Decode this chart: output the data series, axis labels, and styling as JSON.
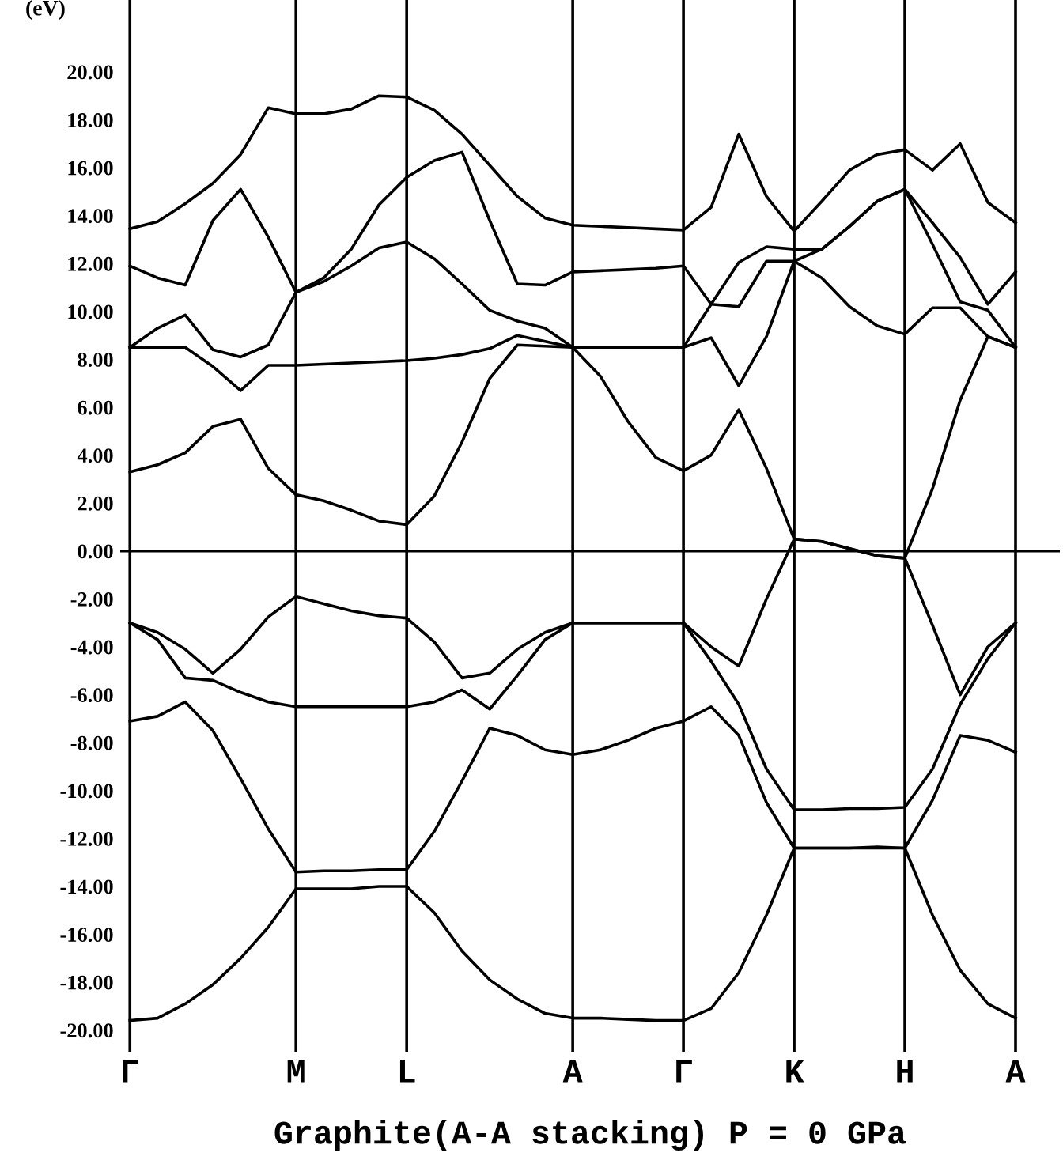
{
  "chart_data": {
    "type": "line",
    "xlabel": "Graphite(A-A stacking) P = 0 GPa",
    "ylabel": "(eV)",
    "categories": [
      "Γ",
      null,
      null,
      null,
      null,
      null,
      "M",
      null,
      null,
      null,
      "L",
      null,
      null,
      null,
      null,
      null,
      "A",
      null,
      null,
      null,
      "Γ",
      null,
      null,
      null,
      "K",
      null,
      null,
      null,
      "H",
      null,
      null,
      null,
      "A"
    ],
    "ylim": [
      -20.9,
      23.0
    ],
    "yticks": [
      {
        "value": 20,
        "label": "20.00"
      },
      {
        "value": 18,
        "label": "18.00"
      },
      {
        "value": 16,
        "label": "16.00"
      },
      {
        "value": 14,
        "label": "14.00"
      },
      {
        "value": 12,
        "label": "12.00"
      },
      {
        "value": 10,
        "label": "10.00"
      },
      {
        "value": 8,
        "label": "8.00"
      },
      {
        "value": 6,
        "label": "6.00"
      },
      {
        "value": 4,
        "label": "4.00"
      },
      {
        "value": 2,
        "label": "2.00"
      },
      {
        "value": 0,
        "label": "0.00"
      },
      {
        "value": -2,
        "label": "-2.00"
      },
      {
        "value": -4,
        "label": "-4.00"
      },
      {
        "value": -6,
        "label": "-6.00"
      },
      {
        "value": -8,
        "label": "-8.00"
      },
      {
        "value": -10,
        "label": "-10.00"
      },
      {
        "value": -12,
        "label": "-12.00"
      },
      {
        "value": -14,
        "label": "-14.00"
      },
      {
        "value": -16,
        "label": "-16.00"
      },
      {
        "value": -18,
        "label": "-18.00"
      },
      {
        "value": -20,
        "label": "-20.00"
      }
    ],
    "grid": "x",
    "marker": "none",
    "line_style": "solid",
    "ref_lines": [
      {
        "axis": "y",
        "value": 0,
        "color": "#000000"
      }
    ],
    "series": [
      {
        "color": "#000000",
        "values": [
          -19.6,
          -19.5,
          -18.9,
          -18.1,
          -17.0,
          -15.7,
          -14.1,
          -14.1,
          -14.1,
          -14.0,
          -14.0,
          -15.1,
          -16.7,
          -17.9,
          -18.7,
          -19.3,
          -19.5,
          -19.5,
          -19.55,
          -19.6,
          -19.6,
          -19.1,
          -17.6,
          -15.2,
          -12.4,
          -12.4,
          -12.4,
          -12.35,
          -12.4,
          -15.2,
          -17.5,
          -18.9,
          -19.5
        ]
      },
      {
        "color": "#000000",
        "values": [
          -7.1,
          -6.9,
          -6.3,
          -7.5,
          -9.5,
          -11.6,
          -13.4,
          -13.35,
          -13.35,
          -13.3,
          -13.3,
          -11.7,
          -9.6,
          -7.4,
          -7.7,
          -8.3,
          -8.5,
          -8.3,
          -7.9,
          -7.4,
          -7.1,
          -6.5,
          -7.7,
          -10.5,
          -12.4,
          -12.4,
          -12.4,
          -12.4,
          -12.4,
          -10.4,
          -7.7,
          -7.9,
          -8.4
        ]
      },
      {
        "color": "#000000",
        "values": [
          -3.0,
          -3.4,
          -4.1,
          -5.1,
          -4.1,
          -2.75,
          -1.9,
          -2.2,
          -2.5,
          -2.7,
          -2.8,
          -3.8,
          -5.3,
          -5.1,
          -4.1,
          -3.4,
          -3.0,
          -3.0,
          -3.0,
          -3.0,
          -3.0,
          -4.0,
          -4.8,
          -2.0,
          0.5,
          0.4,
          0.1,
          -0.2,
          -0.3,
          -3.1,
          -6.0,
          -4.0,
          -3.0
        ]
      },
      {
        "color": "#000000",
        "values": [
          -3.0,
          -3.7,
          -5.3,
          -5.4,
          -5.9,
          -6.3,
          -6.5,
          -6.5,
          -6.5,
          -6.5,
          -6.5,
          -6.3,
          -5.8,
          -6.6,
          -5.2,
          -3.7,
          -3.0,
          -3.0,
          -3.0,
          -3.0,
          -3.0,
          -4.6,
          -6.4,
          -9.1,
          -10.8,
          -10.8,
          -10.75,
          -10.75,
          -10.7,
          -9.1,
          -6.4,
          -4.5,
          -3.0
        ]
      },
      {
        "color": "#000000",
        "values": [
          3.3,
          3.6,
          4.1,
          5.2,
          5.5,
          3.45,
          2.35,
          2.1,
          1.7,
          1.25,
          1.1,
          2.3,
          4.55,
          7.2,
          8.6,
          8.55,
          8.5,
          7.3,
          5.4,
          3.9,
          3.35,
          4.0,
          5.9,
          3.45,
          0.5,
          0.4,
          0.1,
          -0.2,
          -0.3,
          2.6,
          6.3,
          8.95,
          8.5
        ]
      },
      {
        "color": "#000000",
        "values": [
          8.5,
          8.5,
          8.5,
          7.7,
          6.7,
          7.75,
          7.75,
          7.8,
          7.85,
          7.9,
          7.95,
          8.05,
          8.2,
          8.45,
          9.0,
          8.75,
          8.5,
          8.5,
          8.5,
          8.5,
          8.5,
          8.9,
          6.9,
          8.95,
          12.1,
          11.4,
          10.2,
          9.4,
          9.05,
          10.15,
          10.15,
          8.95,
          8.5
        ]
      },
      {
        "color": "#000000",
        "values": [
          8.5,
          9.3,
          9.85,
          8.4,
          8.1,
          8.6,
          10.8,
          11.25,
          11.9,
          12.65,
          12.9,
          12.2,
          11.15,
          10.05,
          9.6,
          9.3,
          8.5,
          8.5,
          8.5,
          8.5,
          8.5,
          10.3,
          12.05,
          12.7,
          12.6,
          12.6,
          13.55,
          14.6,
          15.1,
          12.8,
          10.4,
          10.05,
          8.5
        ]
      },
      {
        "color": "#000000",
        "values": [
          11.9,
          11.4,
          11.1,
          13.8,
          15.1,
          13.1,
          10.8,
          11.4,
          12.6,
          14.45,
          15.6,
          16.3,
          16.65,
          13.8,
          11.15,
          11.1,
          11.65,
          11.7,
          11.75,
          11.8,
          11.9,
          10.3,
          10.2,
          12.1,
          12.1,
          12.6,
          13.55,
          14.6,
          15.1,
          13.7,
          12.25,
          10.3,
          11.65
        ]
      },
      {
        "color": "#000000",
        "values": [
          13.45,
          13.75,
          14.5,
          15.35,
          16.55,
          18.5,
          18.25,
          18.25,
          18.45,
          19.0,
          18.95,
          18.4,
          17.4,
          16.1,
          14.8,
          13.9,
          13.6,
          13.55,
          13.5,
          13.45,
          13.4,
          14.35,
          17.4,
          14.8,
          13.35,
          14.6,
          15.9,
          16.55,
          16.75,
          15.9,
          17.0,
          14.55,
          13.7
        ]
      }
    ]
  }
}
